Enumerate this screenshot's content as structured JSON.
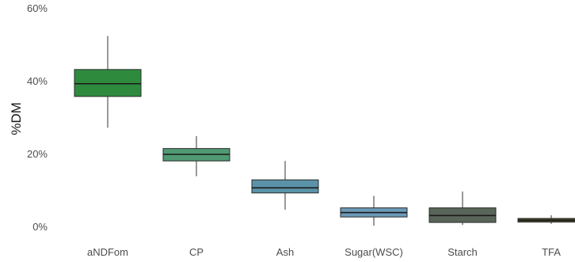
{
  "chart_data": {
    "type": "box",
    "title": "",
    "xlabel": "",
    "ylabel": "%DM",
    "ylim": [
      0,
      60
    ],
    "yticks": [
      "0%",
      "20%",
      "40%",
      "60%"
    ],
    "ytick_values": [
      0,
      20,
      40,
      60
    ],
    "grid": false,
    "categories": [
      "aNDFom",
      "CP",
      "Ash",
      "Sugar(WSC)",
      "Starch",
      "TFA"
    ],
    "boxes": [
      {
        "category": "aNDFom",
        "min": 27.3,
        "q1": 35.9,
        "median": 39.4,
        "q3": 43.3,
        "max": 52.5,
        "color": "#2e8b3e"
      },
      {
        "category": "CP",
        "min": 14.0,
        "q1": 18.2,
        "median": 20.0,
        "q3": 21.6,
        "max": 25.0,
        "color": "#4f9a72"
      },
      {
        "category": "Ash",
        "min": 4.8,
        "q1": 9.4,
        "median": 10.8,
        "q3": 13.0,
        "max": 18.2,
        "color": "#5a93a8"
      },
      {
        "category": "Sugar(WSC)",
        "min": 0.4,
        "q1": 2.8,
        "median": 4.0,
        "q3": 5.3,
        "max": 8.6,
        "color": "#6c9ab8"
      },
      {
        "category": "Starch",
        "min": 0.6,
        "q1": 1.3,
        "median": 3.2,
        "q3": 5.3,
        "max": 9.8,
        "color": "#586558"
      },
      {
        "category": "TFA",
        "min": 0.9,
        "q1": 1.4,
        "median": 1.9,
        "q3": 2.4,
        "max": 3.3,
        "color": "#4a4a2a"
      }
    ]
  }
}
